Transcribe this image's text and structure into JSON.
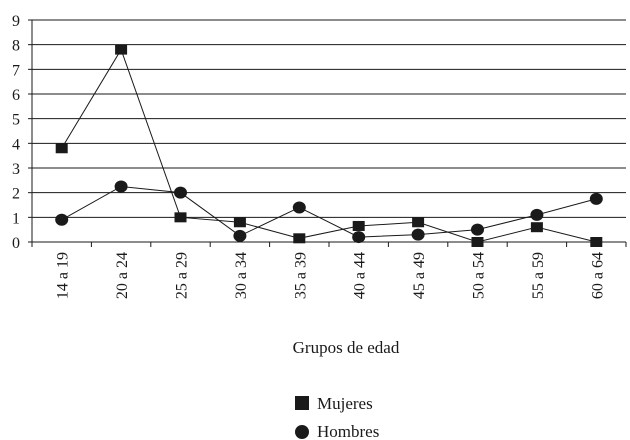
{
  "chart_data": {
    "type": "line",
    "title": "",
    "xlabel": "Grupos de edad",
    "ylabel": "",
    "ylim": [
      0,
      9
    ],
    "yticks": [
      0,
      1,
      2,
      3,
      4,
      5,
      6,
      7,
      8,
      9
    ],
    "grid": true,
    "legend_position": "bottom",
    "categories": [
      "14 a 19",
      "20 a 24",
      "25 a 29",
      "30 a 34",
      "35 a 39",
      "40 a 44",
      "45 a 49",
      "50 a 54",
      "55 a 59",
      "60 a 64"
    ],
    "series": [
      {
        "name": "Mujeres",
        "marker": "square",
        "values": [
          3.8,
          7.8,
          1.0,
          0.8,
          0.15,
          0.65,
          0.8,
          0.0,
          0.6,
          0.0
        ]
      },
      {
        "name": "Hombres",
        "marker": "circle",
        "values": [
          0.9,
          2.25,
          2.0,
          0.25,
          1.4,
          0.2,
          0.3,
          0.5,
          1.1,
          1.75
        ]
      }
    ],
    "colors": {
      "line": "#1a1a1a",
      "grid": "#1a1a1a",
      "axis": "#1a1a1a"
    }
  }
}
